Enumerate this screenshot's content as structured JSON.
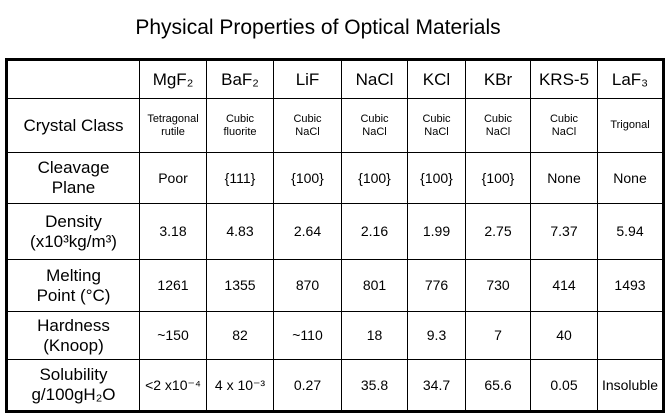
{
  "title": "Physical Properties of Optical Materials",
  "table": {
    "header": [
      "MgF₂",
      "BaF₂",
      "LiF",
      "NaCl",
      "KCl",
      "KBr",
      "KRS-5",
      "LaF₃"
    ],
    "rows": [
      {
        "label": [
          "Crystal Class"
        ],
        "cells": [
          [
            "Tetragonal",
            "rutile"
          ],
          [
            "Cubic",
            "fluorite"
          ],
          [
            "Cubic",
            "NaCl"
          ],
          [
            "Cubic",
            "NaCl"
          ],
          [
            "Cubic",
            "NaCl"
          ],
          [
            "Cubic",
            "NaCl"
          ],
          [
            "Cubic",
            "NaCl"
          ],
          [
            "Trigonal"
          ]
        ]
      },
      {
        "label": [
          "Cleavage",
          "Plane"
        ],
        "cells": [
          [
            "Poor"
          ],
          [
            "{111}"
          ],
          [
            "{100}"
          ],
          [
            "{100}"
          ],
          [
            "{100}"
          ],
          [
            "{100}"
          ],
          [
            "None"
          ],
          [
            "None"
          ]
        ]
      },
      {
        "label": [
          "Density",
          "(x10³kg/m³)"
        ],
        "cells": [
          [
            "3.18"
          ],
          [
            "4.83"
          ],
          [
            "2.64"
          ],
          [
            "2.16"
          ],
          [
            "1.99"
          ],
          [
            "2.75"
          ],
          [
            "7.37"
          ],
          [
            "5.94"
          ]
        ]
      },
      {
        "label": [
          "Melting",
          "Point (°C)"
        ],
        "cells": [
          [
            "1261"
          ],
          [
            "1355"
          ],
          [
            "870"
          ],
          [
            "801"
          ],
          [
            "776"
          ],
          [
            "730"
          ],
          [
            "414"
          ],
          [
            "1493"
          ]
        ]
      },
      {
        "label": [
          "Hardness",
          "(Knoop)"
        ],
        "cells": [
          [
            "~150"
          ],
          [
            "82"
          ],
          [
            "~110"
          ],
          [
            "18"
          ],
          [
            "9.3"
          ],
          [
            "7"
          ],
          [
            "40"
          ],
          null
        ]
      },
      {
        "label": [
          "Solubility",
          "g/100gH₂O"
        ],
        "cells": [
          [
            "<2 x10⁻⁴"
          ],
          [
            "4 x 10⁻³"
          ],
          [
            "0.27"
          ],
          [
            "35.8"
          ],
          [
            "34.7"
          ],
          [
            "65.6"
          ],
          [
            "0.05"
          ],
          [
            "Insoluble"
          ]
        ]
      }
    ]
  }
}
